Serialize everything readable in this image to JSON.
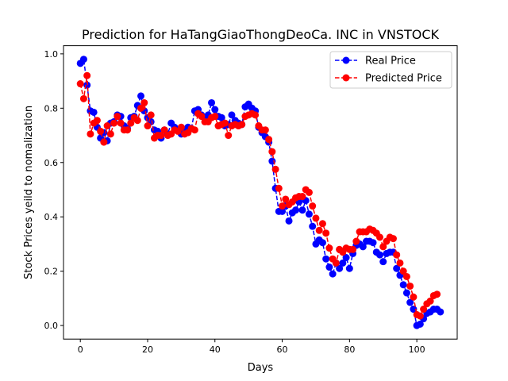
{
  "chart_data": {
    "type": "line",
    "title": "Prediction for HaTangGiaoThongDeoCa. INC in VNSTOCK",
    "xlabel": "Days",
    "ylabel": "Stock Prices yeild to nomalization",
    "xlim": [
      -5,
      112
    ],
    "ylim": [
      -0.05,
      1.03
    ],
    "xticks": [
      0,
      20,
      40,
      60,
      80,
      100
    ],
    "xtick_labels": [
      "0",
      "20",
      "40",
      "60",
      "80",
      "100"
    ],
    "yticks": [
      0.0,
      0.2,
      0.4,
      0.6,
      0.8,
      1.0
    ],
    "ytick_labels": [
      "0.0",
      "0.2",
      "0.4",
      "0.6",
      "0.8",
      "1.0"
    ],
    "grid": false,
    "legend_position": "top-right",
    "series": [
      {
        "name": "Real Price",
        "color": "#0000ff",
        "marker": "circle",
        "linestyle": "dashed",
        "values": [
          0.965,
          0.98,
          0.885,
          0.79,
          0.785,
          0.73,
          0.69,
          0.71,
          0.68,
          0.745,
          0.75,
          0.775,
          0.77,
          0.735,
          0.725,
          0.765,
          0.77,
          0.81,
          0.845,
          0.79,
          0.765,
          0.75,
          0.72,
          0.715,
          0.69,
          0.72,
          0.705,
          0.745,
          0.73,
          0.72,
          0.705,
          0.715,
          0.73,
          0.725,
          0.79,
          0.795,
          0.775,
          0.765,
          0.775,
          0.82,
          0.795,
          0.77,
          0.765,
          0.735,
          0.74,
          0.775,
          0.755,
          0.745,
          0.74,
          0.805,
          0.815,
          0.8,
          0.79,
          0.73,
          0.71,
          0.695,
          0.675,
          0.605,
          0.505,
          0.42,
          0.42,
          0.44,
          0.385,
          0.415,
          0.425,
          0.455,
          0.425,
          0.46,
          0.41,
          0.365,
          0.3,
          0.315,
          0.305,
          0.245,
          0.215,
          0.19,
          0.23,
          0.21,
          0.23,
          0.25,
          0.21,
          0.265,
          0.295,
          0.3,
          0.29,
          0.31,
          0.31,
          0.305,
          0.27,
          0.26,
          0.235,
          0.265,
          0.27,
          0.27,
          0.21,
          0.185,
          0.15,
          0.12,
          0.085,
          0.06,
          0.0,
          0.005,
          0.025,
          0.045,
          0.05,
          0.06,
          0.06,
          0.05
        ]
      },
      {
        "name": "Predicted Price",
        "color": "#ff0000",
        "marker": "circle",
        "linestyle": "dashed",
        "values": [
          0.89,
          0.835,
          0.92,
          0.705,
          0.745,
          0.755,
          0.715,
          0.675,
          0.735,
          0.705,
          0.745,
          0.77,
          0.745,
          0.72,
          0.72,
          0.745,
          0.765,
          0.755,
          0.8,
          0.82,
          0.735,
          0.775,
          0.69,
          0.7,
          0.7,
          0.72,
          0.7,
          0.705,
          0.72,
          0.715,
          0.73,
          0.705,
          0.71,
          0.725,
          0.72,
          0.78,
          0.77,
          0.75,
          0.75,
          0.765,
          0.77,
          0.735,
          0.74,
          0.745,
          0.7,
          0.735,
          0.74,
          0.735,
          0.74,
          0.77,
          0.775,
          0.78,
          0.775,
          0.735,
          0.72,
          0.72,
          0.685,
          0.64,
          0.575,
          0.505,
          0.44,
          0.465,
          0.445,
          0.455,
          0.47,
          0.475,
          0.475,
          0.5,
          0.49,
          0.44,
          0.395,
          0.35,
          0.375,
          0.34,
          0.285,
          0.245,
          0.23,
          0.28,
          0.27,
          0.285,
          0.28,
          0.28,
          0.31,
          0.345,
          0.345,
          0.345,
          0.355,
          0.35,
          0.34,
          0.325,
          0.29,
          0.31,
          0.325,
          0.32,
          0.26,
          0.23,
          0.2,
          0.18,
          0.145,
          0.105,
          0.04,
          0.035,
          0.06,
          0.08,
          0.09,
          0.11,
          0.115
        ]
      }
    ]
  }
}
